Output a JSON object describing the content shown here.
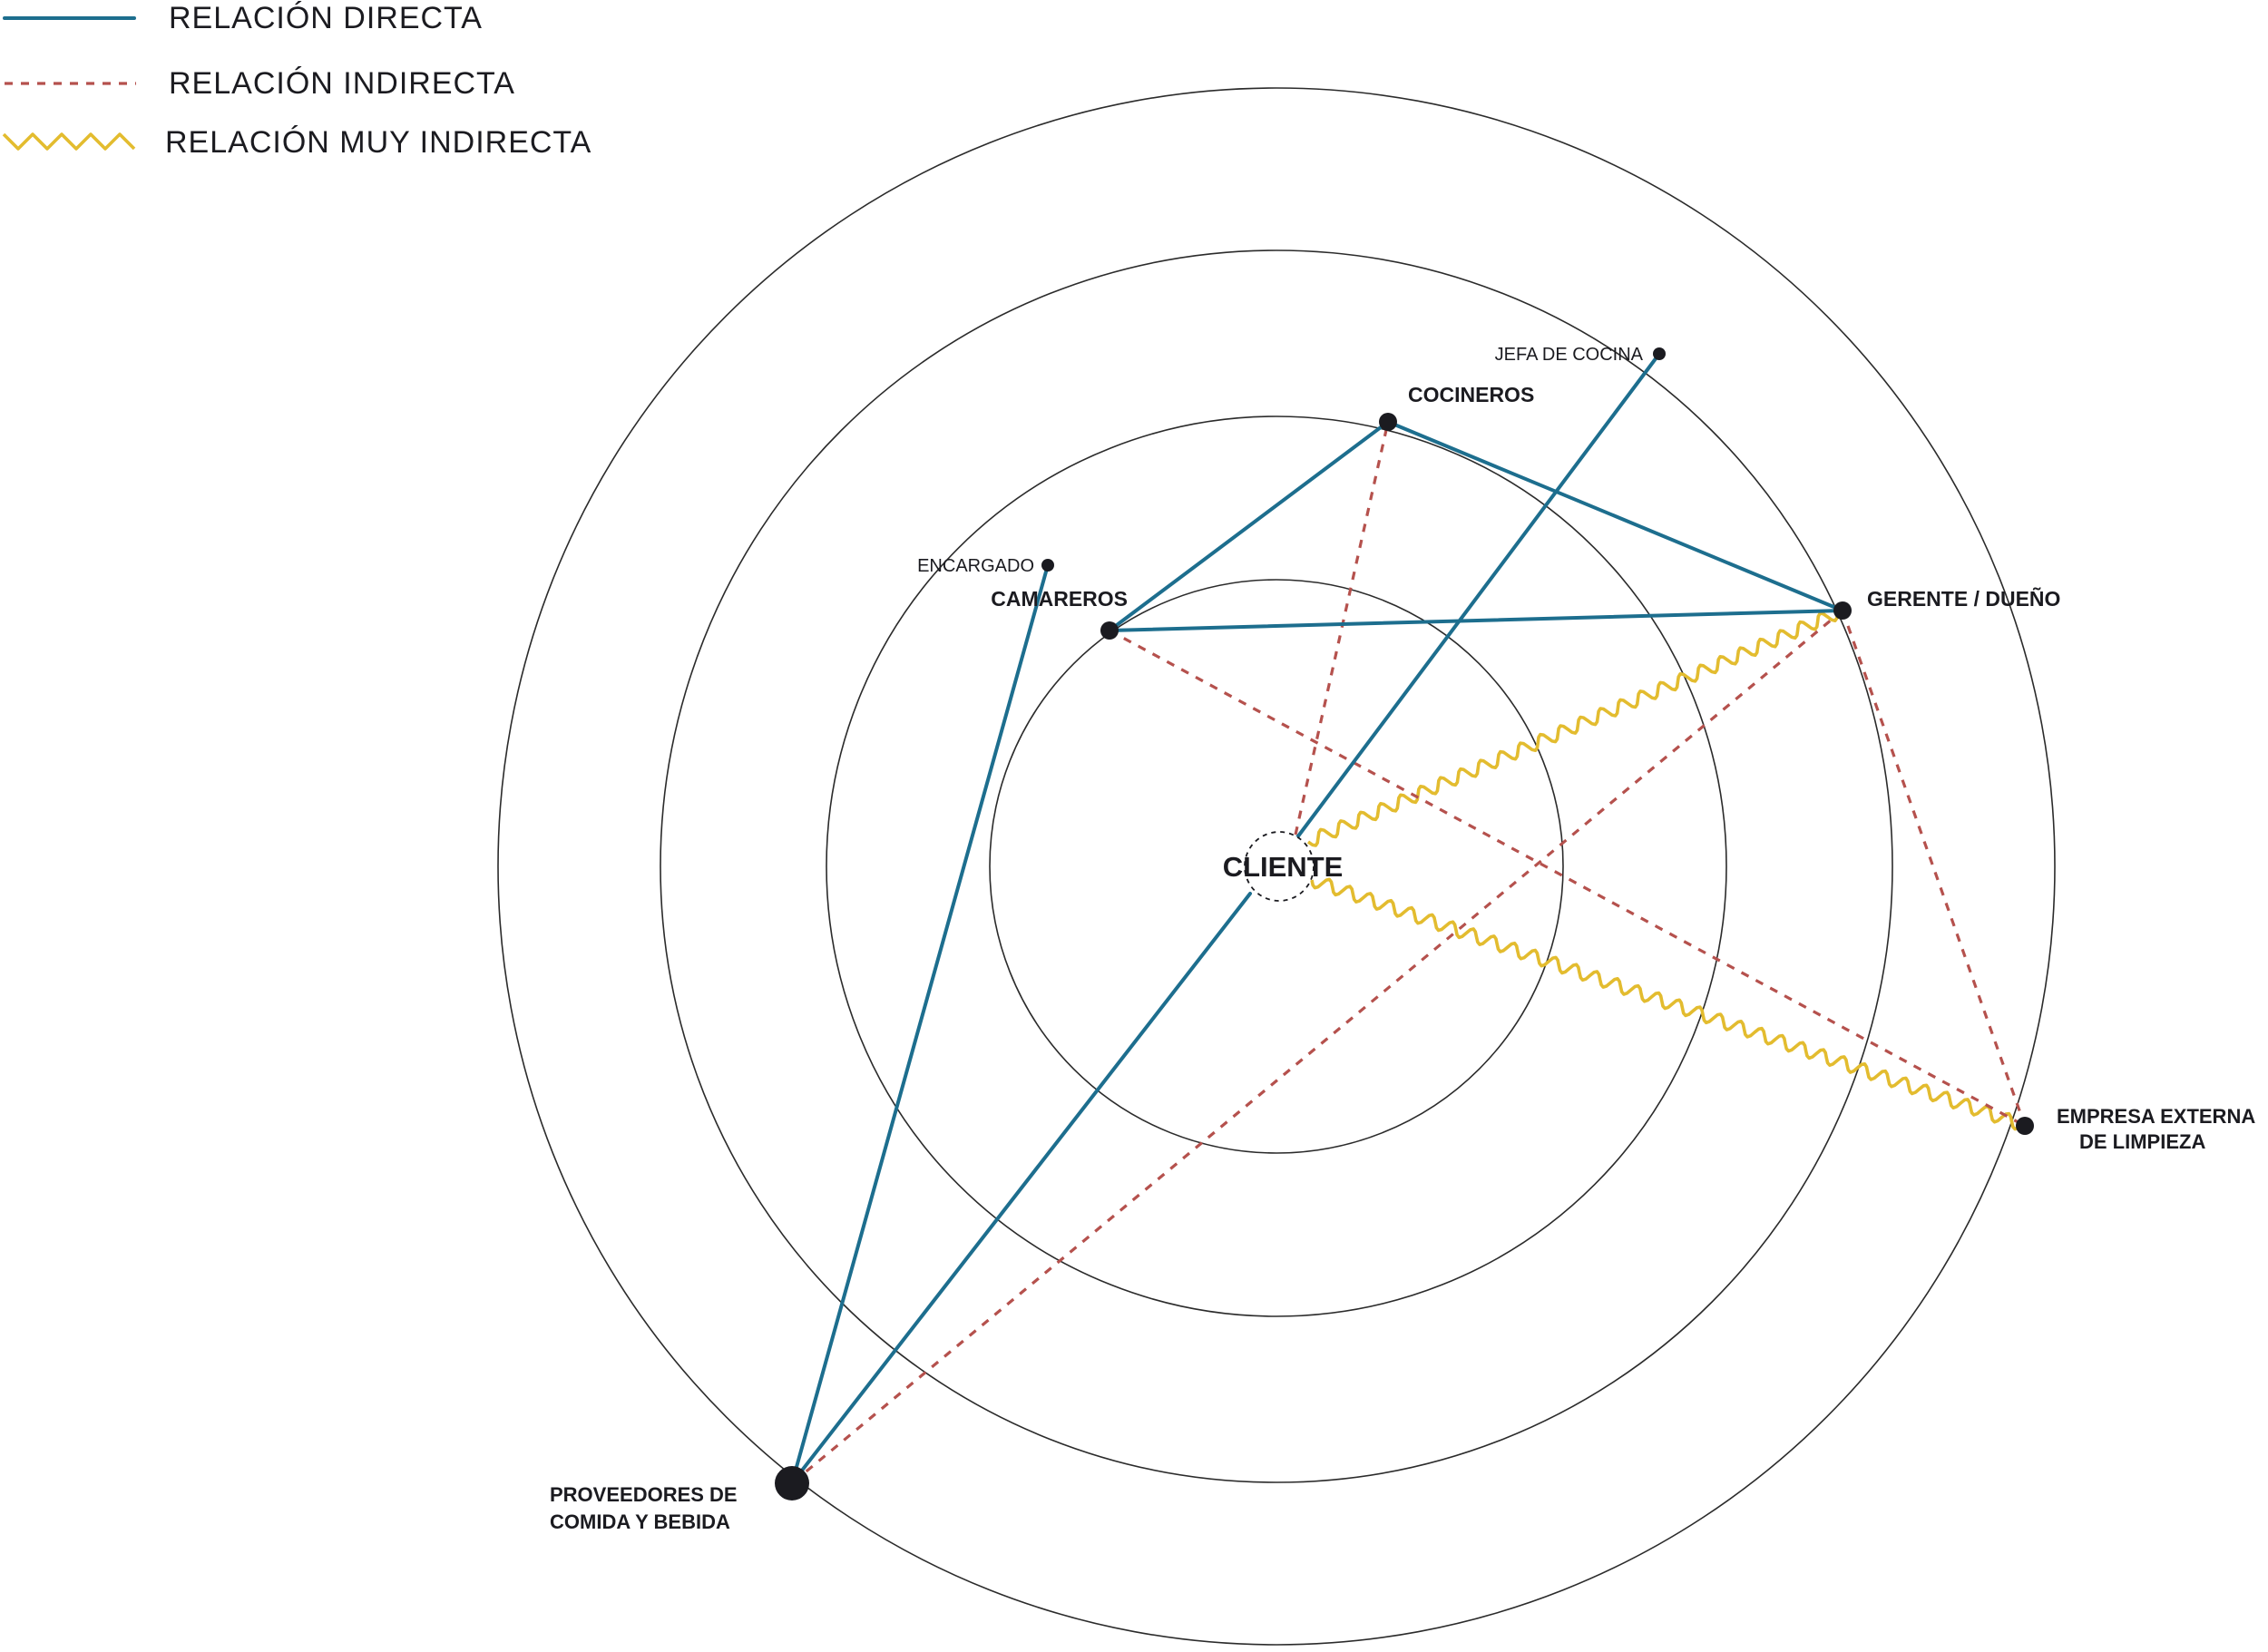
{
  "legend": {
    "direct_label": "RELACIÓN DIRECTA",
    "indirect_label": "RELACIÓN INDIRECTA",
    "very_indirect_label": "RELACIÓN MUY INDIRECTA"
  },
  "center": {
    "label": "CLIENTE"
  },
  "nodes": {
    "jefa": {
      "label": "JEFA DE COCINA"
    },
    "cocineros": {
      "label": "COCINEROS"
    },
    "encargado": {
      "label": "ENCARGADO"
    },
    "camareros": {
      "label": "CAMAREROS"
    },
    "gerente": {
      "label": "GERENTE / DUEÑO"
    },
    "empresa": {
      "line1": "EMPRESA EXTERNA",
      "line2": "DE LIMPIEZA"
    },
    "proveedores": {
      "line1": "PROVEEDORES DE",
      "line2": "COMIDA Y BEBIDA"
    }
  },
  "relations": {
    "direct": [
      [
        "cliente",
        "jefa"
      ],
      [
        "cliente",
        "proveedores"
      ],
      [
        "encargado",
        "proveedores"
      ],
      [
        "camareros",
        "cocineros"
      ],
      [
        "cocineros",
        "gerente"
      ],
      [
        "camareros",
        "gerente"
      ]
    ],
    "indirect": [
      [
        "cliente",
        "cocineros"
      ],
      [
        "camareros",
        "empresa"
      ],
      [
        "gerente",
        "proveedores"
      ],
      [
        "gerente",
        "empresa"
      ]
    ],
    "very_indirect": [
      [
        "cliente",
        "gerente"
      ],
      [
        "cliente",
        "empresa"
      ]
    ]
  },
  "colors": {
    "direct": "#1d6e8e",
    "indirect": "#b5514d",
    "very_indirect": "#e3bc2f",
    "node": "#1b1b20",
    "ring": "#2b2b2b"
  }
}
